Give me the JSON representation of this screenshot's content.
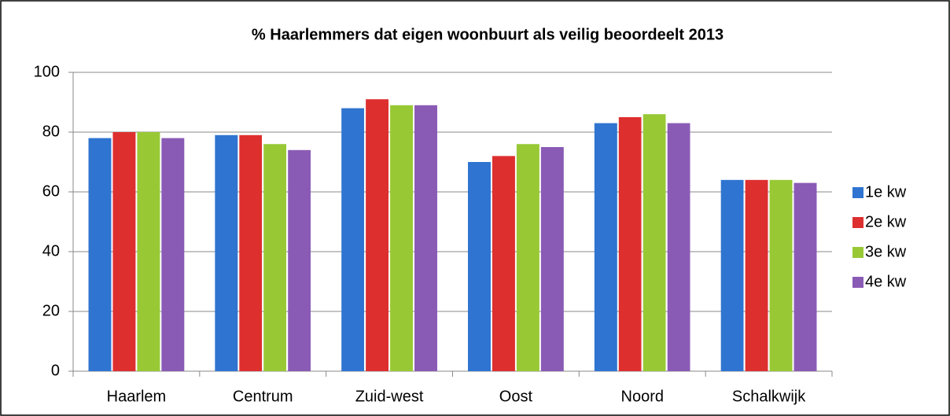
{
  "chart_data": {
    "type": "bar",
    "title": "% Haarlemmers dat eigen woonbuurt als veilig beoordeelt 2013",
    "categories": [
      "Haarlem",
      "Centrum",
      "Zuid-west",
      "Oost",
      "Noord",
      "Schalkwijk"
    ],
    "series": [
      {
        "name": "1e kw",
        "color": "#2f74d0",
        "values": [
          78,
          79,
          88,
          70,
          83,
          64
        ]
      },
      {
        "name": "2e kw",
        "color": "#de2f2f",
        "values": [
          80,
          79,
          91,
          72,
          85,
          64
        ]
      },
      {
        "name": "3e kw",
        "color": "#98c935",
        "values": [
          80,
          76,
          89,
          76,
          86,
          64
        ]
      },
      {
        "name": "4e kw",
        "color": "#8a5bb5",
        "values": [
          78,
          74,
          89,
          75,
          83,
          63
        ]
      }
    ],
    "ylim": [
      0,
      100
    ],
    "yticks": [
      0,
      20,
      40,
      60,
      80,
      100
    ],
    "grid": true,
    "legend": "right"
  }
}
